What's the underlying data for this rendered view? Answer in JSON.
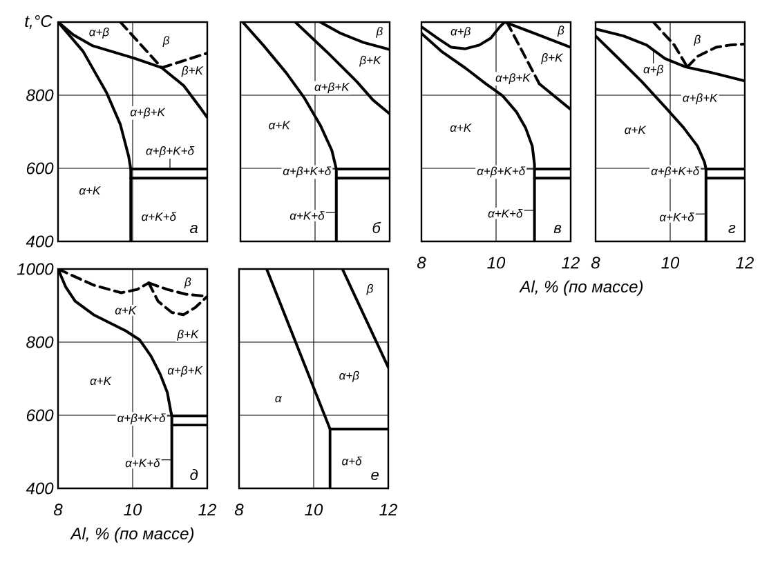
{
  "chart_data": [
    {
      "type": "line",
      "title": "а",
      "ylabel": "t,°C",
      "xlim": [
        8,
        12
      ],
      "ylim": [
        400,
        1000
      ],
      "xticks": [
        8,
        10,
        12
      ],
      "yticks": [
        400,
        600,
        800,
        {
          "value": 1000,
          "label": null
        }
      ],
      "grid": true,
      "tick_labels": "y",
      "series": [
        {
          "color": "#000000",
          "x": [
            8,
            8.41,
            8.93,
            10.04,
            10.78,
            11.37,
            11.81,
            12
          ],
          "values": [
            1000,
            965,
            935,
            901,
            875,
            826,
            766,
            739
          ]
        },
        {
          "color": "#000000",
          "x": [
            8,
            8.67,
            9.3,
            9.67,
            9.89,
            9.95,
            9.95
          ],
          "values": [
            1000,
            920,
            807,
            720,
            634,
            598,
            400
          ]
        },
        {
          "color": "#000000",
          "x": [
            9.95,
            12
          ],
          "values": [
            598,
            598
          ]
        },
        {
          "color": "#000000",
          "x": [
            9.95,
            12
          ],
          "values": [
            573,
            573
          ]
        },
        {
          "color": "#000000",
          "line_style": "dashed",
          "x": [
            9.67,
            10.78
          ],
          "values": [
            1000,
            875
          ]
        },
        {
          "color": "#000000",
          "line_style": "dashed",
          "x": [
            10.78,
            12
          ],
          "values": [
            875,
            915
          ]
        }
      ],
      "annotations": [
        {
          "text": "α+β",
          "x": 9.1,
          "y": 970
        },
        {
          "text": "β",
          "x": 10.9,
          "y": 947
        },
        {
          "text": "β+K",
          "x": 11.6,
          "y": 865
        },
        {
          "text": "α+β+K",
          "x": 10.4,
          "y": 751
        },
        {
          "text": "α+β+K+δ",
          "x": 11.0,
          "y": 598
        },
        {
          "text": "α+K",
          "x": 8.85,
          "y": 539
        },
        {
          "text": "α+K+δ",
          "x": 10.7,
          "y": 468
        }
      ]
    },
    {
      "type": "line",
      "title": "б",
      "xlim": [
        8,
        12
      ],
      "ylim": [
        400,
        1000
      ],
      "xticks": [
        8,
        10,
        12
      ],
      "yticks": [
        400,
        600,
        800,
        1000
      ],
      "grid": true,
      "tick_labels": false,
      "series": [
        {
          "color": "#000000",
          "x": [
            8.06,
            8.61,
            9.22,
            9.71,
            10.14,
            10.45,
            10.57,
            10.57
          ],
          "values": [
            1000,
            937,
            862,
            793,
            718,
            649,
            598,
            400
          ]
        },
        {
          "color": "#000000",
          "x": [
            9.47,
            10.32,
            11.12,
            11.55,
            12
          ],
          "values": [
            1000,
            918,
            837,
            787,
            749
          ]
        },
        {
          "color": "#000000",
          "x": [
            10.14,
            10.69,
            11.3,
            12
          ],
          "values": [
            1000,
            969,
            944,
            925
          ]
        },
        {
          "color": "#000000",
          "x": [
            10.57,
            12
          ],
          "values": [
            598,
            598
          ]
        },
        {
          "color": "#000000",
          "x": [
            10.57,
            12
          ],
          "values": [
            573,
            573
          ]
        }
      ],
      "annotations": [
        {
          "text": "β",
          "x": 11.73,
          "y": 972
        },
        {
          "text": "β+K",
          "x": 11.48,
          "y": 893
        },
        {
          "text": "α+β+K",
          "x": 10.45,
          "y": 820
        },
        {
          "text": "α+K",
          "x": 9.04,
          "y": 718
        },
        {
          "text": "α+β+K+δ",
          "x": 10.75,
          "y": 598
        },
        {
          "text": "α+K+δ",
          "x": 10.57,
          "y": 479
        }
      ]
    },
    {
      "type": "line",
      "title": "в",
      "xlabel": "Al, % (по массе)",
      "xlim": [
        8,
        12
      ],
      "ylim": [
        400,
        1000
      ],
      "xticks": [
        8,
        10,
        12
      ],
      "yticks": [
        400,
        600,
        800,
        1000
      ],
      "grid": true,
      "tick_labels": "x",
      "series": [
        {
          "color": "#000000",
          "x": [
            8,
            8.43,
            8.8,
            9.18,
            9.55,
            9.86,
            10.1,
            10.23
          ],
          "values": [
            987,
            956,
            931,
            927,
            937,
            956,
            987,
            1000
          ]
        },
        {
          "color": "#000000",
          "x": [
            10.23,
            11.03,
            12
          ],
          "values": [
            1000,
            969,
            931
          ]
        },
        {
          "color": "#000000",
          "line_style": "dashed",
          "x": [
            10.29,
            11.16
          ],
          "values": [
            1000,
            831
          ]
        },
        {
          "color": "#000000",
          "x": [
            11.16,
            12
          ],
          "values": [
            831,
            761
          ]
        },
        {
          "color": "#000000",
          "x": [
            8,
            8.56,
            9.18,
            9.73,
            10.17,
            10.54,
            10.79,
            10.97,
            11.03,
            11.03
          ],
          "values": [
            969,
            918,
            874,
            831,
            799,
            755,
            711,
            661,
            611,
            400
          ]
        },
        {
          "color": "#000000",
          "x": [
            11.03,
            12
          ],
          "values": [
            598,
            598
          ]
        },
        {
          "color": "#000000",
          "x": [
            11.03,
            12
          ],
          "values": [
            573,
            573
          ]
        }
      ],
      "annotations": [
        {
          "text": "α+β",
          "x": 9.05,
          "y": 972
        },
        {
          "text": "β",
          "x": 11.74,
          "y": 975
        },
        {
          "text": "β+K",
          "x": 11.5,
          "y": 900
        },
        {
          "text": "α+β+K",
          "x": 10.45,
          "y": 845
        },
        {
          "text": "α+K",
          "x": 9.05,
          "y": 711
        },
        {
          "text": "α+β+K+δ",
          "x": 11.1,
          "y": 598
        },
        {
          "text": "α+K+δ",
          "x": 11.03,
          "y": 485
        }
      ]
    },
    {
      "type": "line",
      "title": "г",
      "xlim": [
        8,
        12
      ],
      "ylim": [
        400,
        1000
      ],
      "xticks": [
        8,
        10,
        12
      ],
      "yticks": [
        400,
        600,
        800,
        1000
      ],
      "grid": true,
      "tick_labels": "x",
      "series": [
        {
          "color": "#000000",
          "x": [
            8,
            8.75,
            9.37,
            9.86,
            10.42,
            11.1,
            12
          ],
          "values": [
            981,
            962,
            937,
            900,
            877,
            862,
            839
          ]
        },
        {
          "color": "#000000",
          "x": [
            8,
            8.62,
            9.24,
            9.86,
            10.36,
            10.73,
            10.92,
            10.96,
            10.96
          ],
          "values": [
            962,
            900,
            837,
            768,
            711,
            661,
            617,
            598,
            400
          ]
        },
        {
          "color": "#000000",
          "line_style": "dashed",
          "x": [
            9.55,
            10.11,
            10.46
          ],
          "values": [
            1000,
            937,
            877
          ]
        },
        {
          "color": "#000000",
          "line_style": "dashed",
          "x": [
            10.46,
            10.73,
            11.23,
            11.6,
            12
          ],
          "values": [
            877,
            906,
            931,
            937,
            940
          ]
        },
        {
          "color": "#000000",
          "x": [
            10.96,
            12
          ],
          "values": [
            598,
            598
          ]
        },
        {
          "color": "#000000",
          "x": [
            10.96,
            12
          ],
          "values": [
            573,
            573
          ]
        }
      ],
      "annotations": [
        {
          "text": "β",
          "x": 10.73,
          "y": 950
        },
        {
          "text": "α+β+K",
          "x": 10.8,
          "y": 790
        },
        {
          "text": "α+K",
          "x": 9.06,
          "y": 705
        },
        {
          "text": "α+β",
          "x": 9.55,
          "y": 923
        },
        {
          "text": "α+β+K+δ",
          "x": 11.1,
          "y": 598
        },
        {
          "text": "α+K+δ",
          "x": 10.96,
          "y": 475
        }
      ]
    },
    {
      "type": "line",
      "title": "д",
      "xlabel": "Al, % (по массе)",
      "xlim": [
        8,
        12
      ],
      "ylim": [
        400,
        1000
      ],
      "xticks": [
        8,
        10,
        12
      ],
      "yticks": [
        400,
        600,
        800,
        1000
      ],
      "grid": true,
      "series": [
        {
          "color": "#000000",
          "x": [
            8,
            8.21,
            8.46,
            8.95,
            9.44,
            9.81,
            10.19,
            10.49,
            10.74,
            10.93,
            11.02,
            11.05,
            11.05
          ],
          "values": [
            1000,
            950,
            912,
            875,
            850,
            831,
            806,
            762,
            712,
            662,
            612,
            598,
            400
          ]
        },
        {
          "color": "#000000",
          "line_style": "dashed",
          "x": [
            8,
            8.95,
            9.69,
            10.12,
            10.43
          ],
          "values": [
            1000,
            956,
            935,
            944,
            962
          ]
        },
        {
          "color": "#000000",
          "line_style": "dashed",
          "x": [
            10.43,
            10.93,
            11.42,
            12
          ],
          "values": [
            962,
            944,
            931,
            925
          ]
        },
        {
          "color": "#000000",
          "line_style": "dashed",
          "x": [
            10.43,
            10.68,
            11.05,
            11.36,
            11.67,
            12
          ],
          "values": [
            962,
            912,
            881,
            875,
            894,
            925
          ]
        },
        {
          "color": "#000000",
          "x": [
            11.05,
            12
          ],
          "values": [
            598,
            598
          ]
        },
        {
          "color": "#000000",
          "x": [
            11.05,
            12
          ],
          "values": [
            573,
            573
          ]
        }
      ],
      "annotations": [
        {
          "text": "β",
          "x": 11.48,
          "y": 962
        },
        {
          "text": "α+K",
          "x": 9.81,
          "y": 887
        },
        {
          "text": "β+K",
          "x": 11.48,
          "y": 819
        },
        {
          "text": "α+β+K",
          "x": 11.4,
          "y": 720
        },
        {
          "text": "α+K",
          "x": 9.14,
          "y": 694
        },
        {
          "text": "α+β+K+δ",
          "x": 11.2,
          "y": 598
        },
        {
          "text": "α+K+δ",
          "x": 11.05,
          "y": 478
        }
      ]
    },
    {
      "type": "line",
      "title": "е",
      "xlim": [
        8,
        12
      ],
      "ylim": [
        400,
        1000
      ],
      "xticks": [
        8,
        10,
        12
      ],
      "yticks": [
        400,
        600,
        800,
        1000
      ],
      "grid": true,
      "tick_labels": "x",
      "series": [
        {
          "color": "#000000",
          "x": [
            8.74,
            10.44,
            10.44
          ],
          "values": [
            1000,
            562,
            400
          ]
        },
        {
          "color": "#000000",
          "x": [
            10.44,
            12
          ],
          "values": [
            562,
            562
          ]
        },
        {
          "color": "#000000",
          "x": [
            10.77,
            12
          ],
          "values": [
            1000,
            731
          ]
        }
      ],
      "annotations": [
        {
          "text": "β",
          "x": 11.51,
          "y": 944
        },
        {
          "text": "α+β",
          "x": 10.95,
          "y": 706
        },
        {
          "text": "α",
          "x": 9.05,
          "y": 644
        },
        {
          "text": "α+δ",
          "x": 11.02,
          "y": 475
        }
      ]
    }
  ]
}
